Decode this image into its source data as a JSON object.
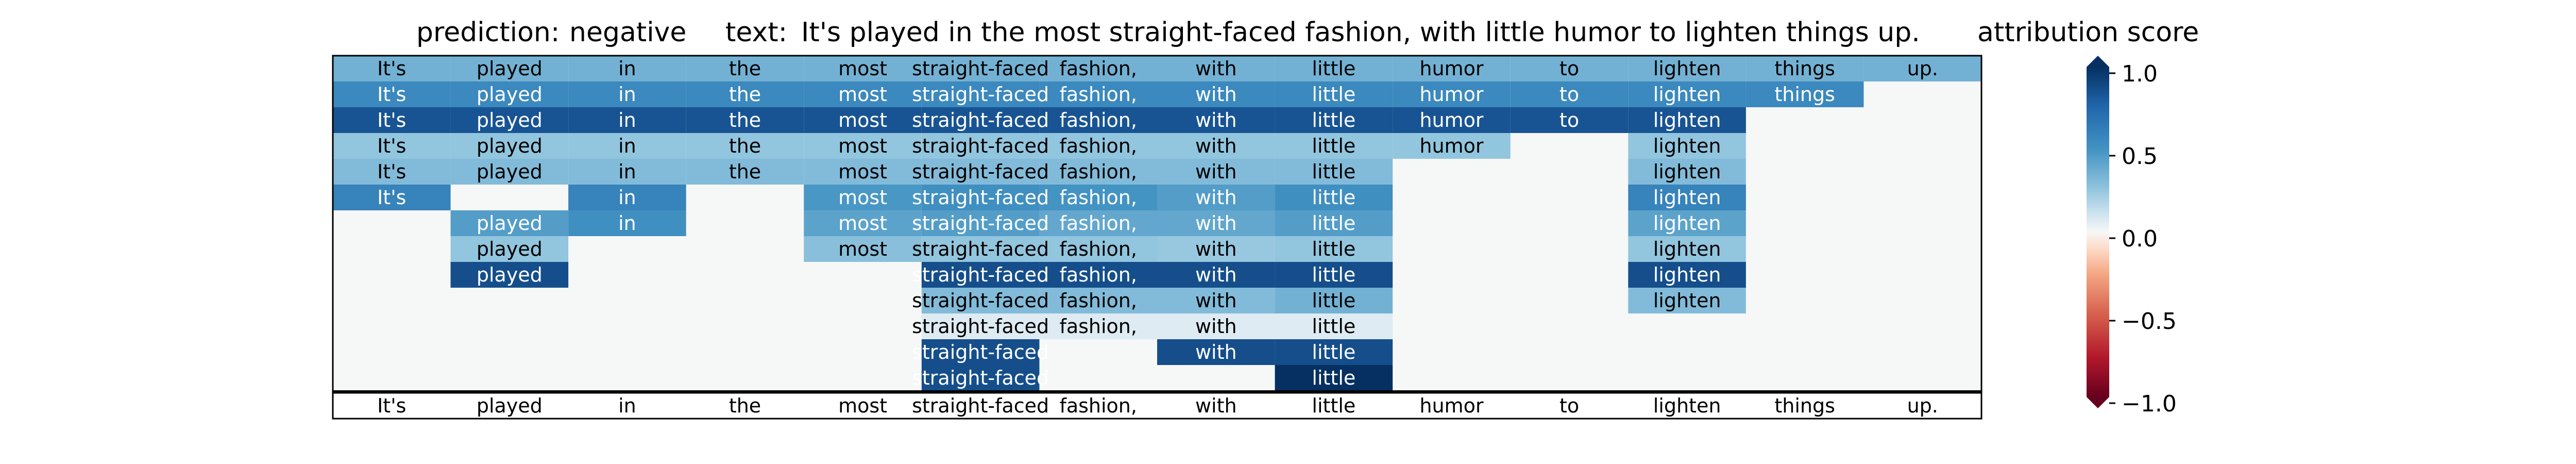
{
  "header": {
    "prediction_label": "prediction:",
    "prediction_value": "negative",
    "text_label": "text:",
    "text_value": "It's played in the most straight-faced fashion, with little humor to lighten things up.",
    "colorbar_title": "attribution score"
  },
  "colors": {
    "background": "#f6f7f7",
    "frame": "#000000",
    "colormap": "RdBu",
    "strong_positive": "#053061",
    "positive": "#2166ac",
    "mid_positive": "#4393c3",
    "light_positive": "#92c5de",
    "faint_positive": "#d1e5f0",
    "neutral": "#f7f7f7",
    "strong_negative": "#67001f"
  },
  "chart_data": {
    "type": "heatmap",
    "title": "attribution score",
    "tokens": [
      "It's",
      "played",
      "in",
      "the",
      "most",
      "straight-faced",
      "fashion,",
      "with",
      "little",
      "humor",
      "to",
      "lighten",
      "things",
      "up."
    ],
    "colorbar": {
      "ticks": [
        1.0,
        0.5,
        0.0,
        -0.5,
        -1.0
      ],
      "tick_labels": [
        "1.0",
        "0.5",
        "0.0",
        "−0.5",
        "−1.0"
      ],
      "range": [
        -1.0,
        1.0
      ]
    },
    "rows": [
      [
        0.45,
        0.45,
        0.45,
        0.45,
        0.45,
        0.45,
        0.45,
        0.45,
        0.45,
        0.45,
        0.45,
        0.45,
        0.45,
        0.45
      ],
      [
        0.65,
        0.65,
        0.65,
        0.65,
        0.65,
        0.65,
        0.65,
        0.65,
        0.65,
        0.65,
        0.65,
        0.65,
        0.65,
        null
      ],
      [
        0.88,
        0.88,
        0.88,
        0.88,
        0.88,
        0.88,
        0.88,
        0.88,
        0.88,
        0.88,
        0.88,
        0.88,
        null,
        null
      ],
      [
        0.35,
        0.35,
        0.35,
        0.35,
        0.35,
        0.35,
        0.35,
        0.35,
        0.35,
        0.35,
        null,
        0.35,
        null,
        null
      ],
      [
        0.4,
        0.4,
        0.4,
        0.4,
        0.4,
        0.4,
        0.4,
        0.4,
        0.4,
        null,
        null,
        0.4,
        null,
        null
      ],
      [
        0.68,
        null,
        0.68,
        null,
        0.58,
        0.62,
        0.6,
        0.55,
        0.62,
        null,
        null,
        0.68,
        null,
        null
      ],
      [
        null,
        0.55,
        0.62,
        null,
        0.52,
        0.55,
        0.5,
        0.5,
        0.55,
        null,
        null,
        0.52,
        null,
        null
      ],
      [
        null,
        0.35,
        null,
        null,
        0.38,
        0.35,
        0.35,
        0.33,
        0.35,
        null,
        null,
        0.35,
        null,
        null
      ],
      [
        null,
        0.9,
        null,
        null,
        null,
        0.9,
        0.9,
        0.9,
        0.9,
        null,
        null,
        0.9,
        null,
        null
      ],
      [
        null,
        null,
        null,
        null,
        null,
        0.4,
        0.4,
        0.4,
        0.45,
        null,
        null,
        0.4,
        null,
        null
      ],
      [
        null,
        null,
        null,
        null,
        null,
        0.1,
        0.1,
        0.1,
        0.1,
        null,
        null,
        null,
        null,
        null
      ],
      [
        null,
        null,
        null,
        null,
        null,
        0.9,
        null,
        0.9,
        0.9,
        null,
        null,
        null,
        null,
        null
      ],
      [
        null,
        null,
        null,
        null,
        null,
        0.9,
        null,
        null,
        1.0,
        null,
        null,
        null,
        null,
        null
      ]
    ],
    "bottom_row": [
      "It's",
      "played",
      "in",
      "the",
      "most",
      "straight-faced",
      "fashion,",
      "with",
      "little",
      "humor",
      "to",
      "lighten",
      "things",
      "up."
    ]
  }
}
